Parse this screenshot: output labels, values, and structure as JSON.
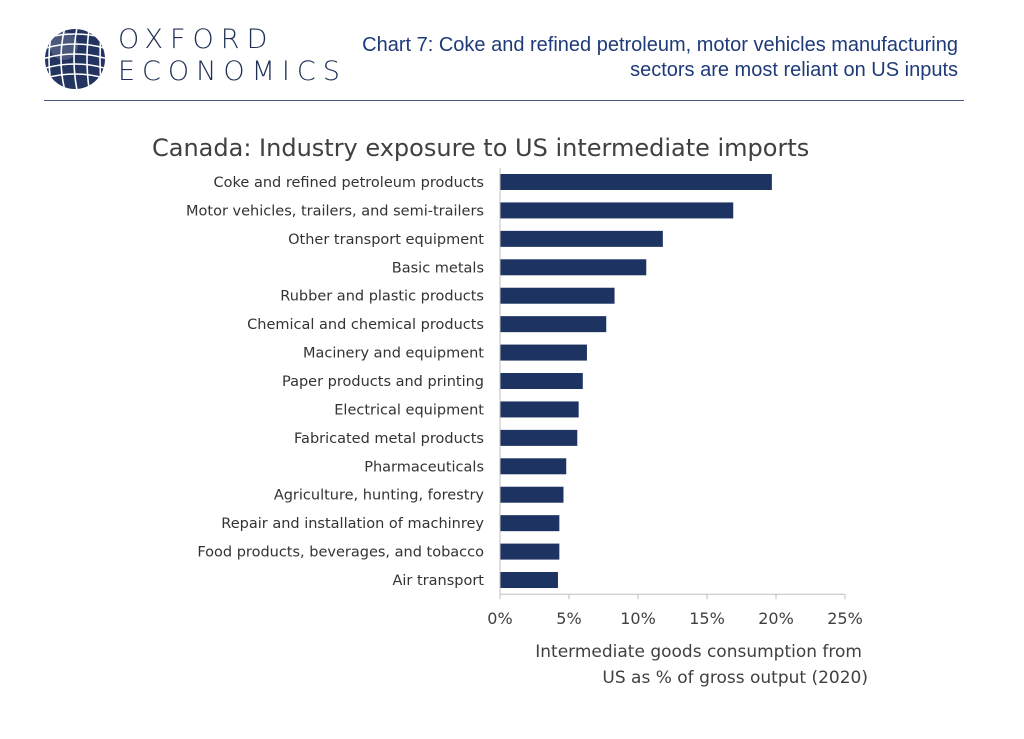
{
  "brand": {
    "line1": "OXFORD",
    "line2": "ECONOMICS",
    "logo_icon": "globe-icon",
    "color": "#1e2f55"
  },
  "headline": "Chart 7: Coke and refined petroleum, motor vehicles manufacturing sectors are most reliant on US inputs",
  "colors": {
    "bar": "#1d3361",
    "headline": "#1e3a78",
    "text": "#3a3a3a"
  },
  "chart_data": {
    "type": "bar",
    "orientation": "horizontal",
    "title": "Canada: Industry exposure to US intermediate imports",
    "categories": [
      "Coke and refined petroleum products",
      "Motor vehicles, trailers, and semi-trailers",
      "Other transport equipment",
      "Basic metals",
      "Rubber and plastic products",
      "Chemical and chemical products",
      "Macinery and equipment",
      "Paper products and printing",
      "Electrical equipment",
      "Fabricated metal products",
      "Pharmaceuticals",
      "Agriculture, hunting, forestry",
      "Repair and installation of machinrey",
      "Food products, beverages, and tobacco",
      "Air transport"
    ],
    "values": [
      19.7,
      16.9,
      11.8,
      10.6,
      8.3,
      7.7,
      6.3,
      6.0,
      5.7,
      5.6,
      4.8,
      4.6,
      4.3,
      4.3,
      4.2
    ],
    "xlabel_line1": "Intermediate goods consumption from",
    "xlabel_line2": "US as % of gross output (2020)",
    "xlim": [
      0,
      25
    ],
    "xticks": [
      0,
      5,
      10,
      15,
      20,
      25
    ],
    "xtick_labels": [
      "0%",
      "5%",
      "10%",
      "15%",
      "20%",
      "25%"
    ],
    "grid": false,
    "legend": "none"
  }
}
